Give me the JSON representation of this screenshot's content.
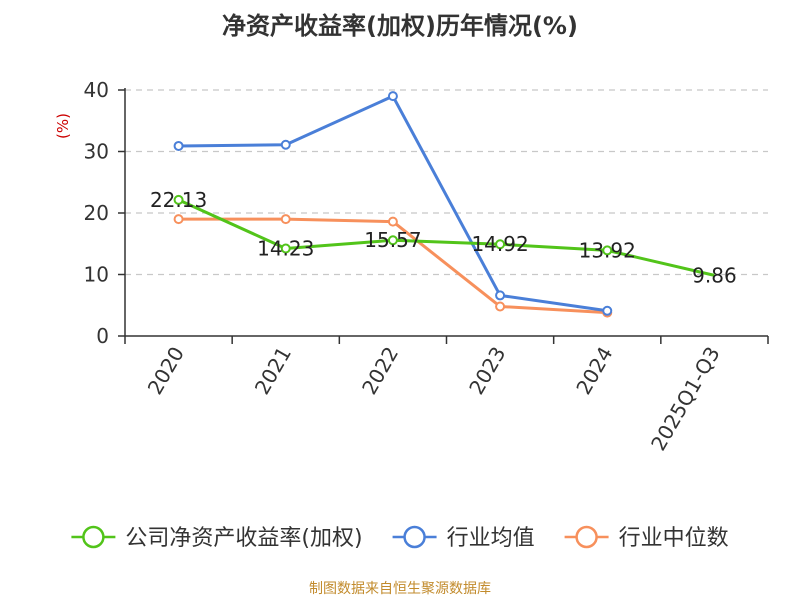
{
  "chart_data": {
    "type": "line",
    "title": "净资产收益率(加权)历年情况(%)",
    "ylabel": "(%)",
    "xlabel": "",
    "categories": [
      "2020",
      "2021",
      "2022",
      "2023",
      "2024",
      "2025Q1-Q3"
    ],
    "ylim": [
      0,
      40
    ],
    "yticks": [
      0,
      10,
      20,
      30,
      40
    ],
    "grid": true,
    "legend_position": "bottom",
    "series": [
      {
        "name": "公司净资产收益率(加权)",
        "color": "#52c41a",
        "values": [
          22.13,
          14.23,
          15.57,
          14.92,
          13.92,
          9.86
        ],
        "labels": [
          "22.13",
          "14.23",
          "15.57",
          "14.92",
          "13.92",
          "9.86"
        ],
        "show_markers": [
          true,
          true,
          true,
          true,
          true,
          false
        ],
        "show_labels": true
      },
      {
        "name": "行业均值",
        "color": "#4a7fd8",
        "values": [
          30.9,
          31.1,
          39.0,
          6.6,
          4.1,
          null
        ],
        "show_markers": [
          true,
          true,
          true,
          true,
          true,
          false
        ],
        "show_labels": false
      },
      {
        "name": "行业中位数",
        "color": "#f7905c",
        "values": [
          19.0,
          19.0,
          18.6,
          4.8,
          3.8,
          null
        ],
        "show_markers": [
          true,
          true,
          true,
          true,
          true,
          false
        ],
        "show_labels": false
      }
    ]
  },
  "footer": {
    "source": "制图数据来自恒生聚源数据库"
  }
}
